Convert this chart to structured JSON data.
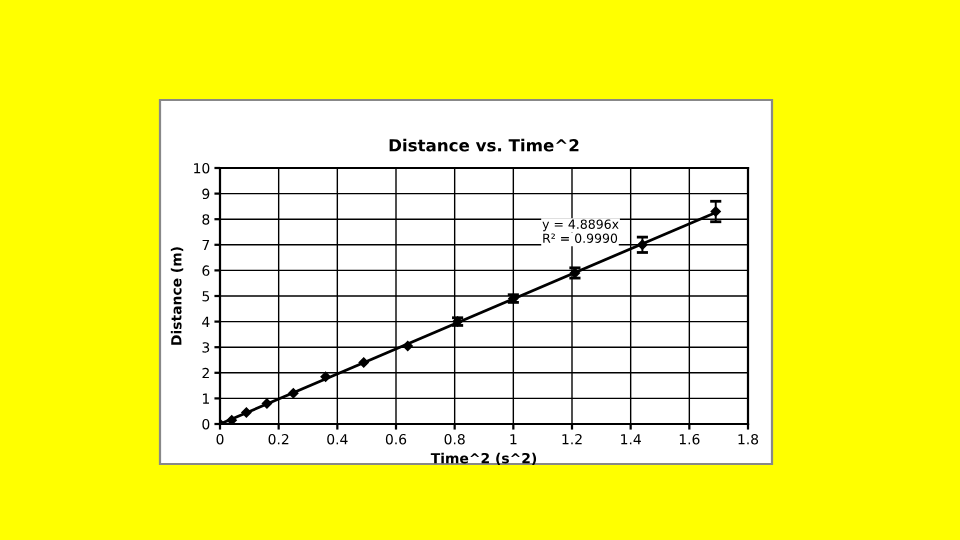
{
  "chart_data": {
    "type": "scatter",
    "title": "Distance vs. Time^2",
    "xlabel": "Time^2 (s^2)",
    "ylabel": "Distance (m)",
    "x": [
      0,
      0.04,
      0.09,
      0.16,
      0.25,
      0.36,
      0.49,
      0.64,
      0.81,
      1.0,
      1.21,
      1.44,
      1.69
    ],
    "series": [
      {
        "type": "scatter",
        "color": "#000000",
        "marker": "diamond",
        "values": [
          0,
          0.15,
          0.45,
          0.8,
          1.2,
          1.85,
          2.4,
          3.05,
          4.0,
          4.9,
          5.9,
          7.0,
          8.3
        ],
        "errors": [
          null,
          null,
          null,
          null,
          null,
          null,
          null,
          null,
          0.15,
          0.15,
          0.2,
          0.3,
          0.4
        ]
      },
      {
        "type": "line",
        "color": "#000000",
        "x": [
          0,
          1.69
        ],
        "values": [
          0,
          8.26
        ]
      }
    ],
    "annotations": [
      "y = 4.8896x",
      "R² = 0.9990"
    ],
    "xlim": [
      0,
      1.8
    ],
    "xticks": [
      0,
      0.2,
      0.4,
      0.6,
      0.8,
      1,
      1.2,
      1.4,
      1.6,
      1.8
    ],
    "ylim": [
      0,
      10
    ],
    "yticks": [
      0,
      1,
      2,
      3,
      4,
      5,
      6,
      7,
      8,
      9,
      10
    ],
    "grid": true
  }
}
